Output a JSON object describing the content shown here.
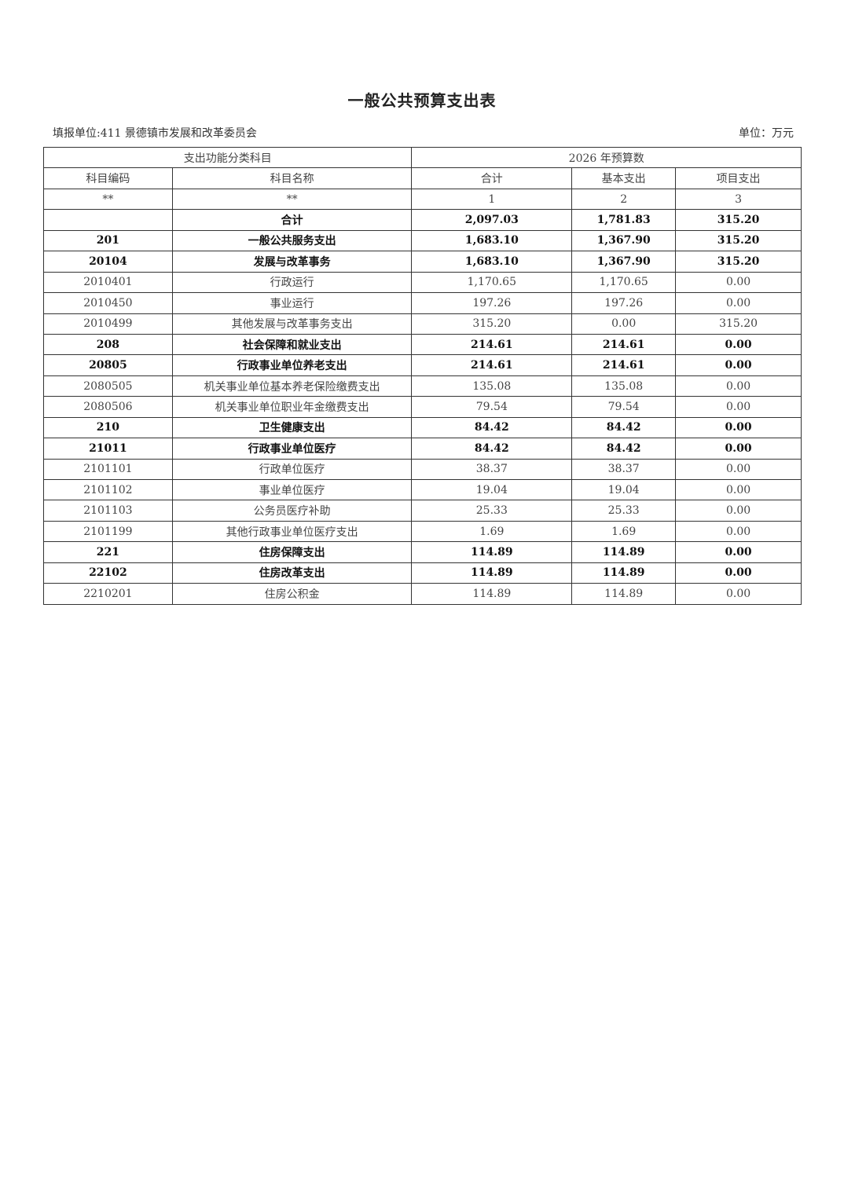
{
  "title": "一般公共预算支出表",
  "unit_left": "填报单位:411 景德镇市发展和改革委员会",
  "unit_right": "单位：万元",
  "header": {
    "group1": "支出功能分类科目",
    "group2": "2026 年预算数",
    "cols": [
      "科目编码",
      "科目名称",
      "合计",
      "基本支出",
      "项目支出"
    ],
    "index": [
      "**",
      "**",
      "1",
      "2",
      "3"
    ]
  },
  "rows": [
    {
      "code": "",
      "name": "合计",
      "total": "2,097.03",
      "basic": "1,781.83",
      "project": "315.20",
      "bold": true
    },
    {
      "code": "201",
      "name": "一般公共服务支出",
      "total": "1,683.10",
      "basic": "1,367.90",
      "project": "315.20",
      "bold": true
    },
    {
      "code": "20104",
      "name": "发展与改革事务",
      "total": "1,683.10",
      "basic": "1,367.90",
      "project": "315.20",
      "bold": true
    },
    {
      "code": "2010401",
      "name": "行政运行",
      "total": "1,170.65",
      "basic": "1,170.65",
      "project": "0.00",
      "bold": false
    },
    {
      "code": "2010450",
      "name": "事业运行",
      "total": "197.26",
      "basic": "197.26",
      "project": "0.00",
      "bold": false
    },
    {
      "code": "2010499",
      "name": "其他发展与改革事务支出",
      "total": "315.20",
      "basic": "0.00",
      "project": "315.20",
      "bold": false
    },
    {
      "code": "208",
      "name": "社会保障和就业支出",
      "total": "214.61",
      "basic": "214.61",
      "project": "0.00",
      "bold": true
    },
    {
      "code": "20805",
      "name": "行政事业单位养老支出",
      "total": "214.61",
      "basic": "214.61",
      "project": "0.00",
      "bold": true
    },
    {
      "code": "2080505",
      "name": "机关事业单位基本养老保险缴费支出",
      "total": "135.08",
      "basic": "135.08",
      "project": "0.00",
      "bold": false
    },
    {
      "code": "2080506",
      "name": "机关事业单位职业年金缴费支出",
      "total": "79.54",
      "basic": "79.54",
      "project": "0.00",
      "bold": false
    },
    {
      "code": "210",
      "name": "卫生健康支出",
      "total": "84.42",
      "basic": "84.42",
      "project": "0.00",
      "bold": true
    },
    {
      "code": "21011",
      "name": "行政事业单位医疗",
      "total": "84.42",
      "basic": "84.42",
      "project": "0.00",
      "bold": true
    },
    {
      "code": "2101101",
      "name": "行政单位医疗",
      "total": "38.37",
      "basic": "38.37",
      "project": "0.00",
      "bold": false
    },
    {
      "code": "2101102",
      "name": "事业单位医疗",
      "total": "19.04",
      "basic": "19.04",
      "project": "0.00",
      "bold": false
    },
    {
      "code": "2101103",
      "name": "公务员医疗补助",
      "total": "25.33",
      "basic": "25.33",
      "project": "0.00",
      "bold": false
    },
    {
      "code": "2101199",
      "name": "其他行政事业单位医疗支出",
      "total": "1.69",
      "basic": "1.69",
      "project": "0.00",
      "bold": false
    },
    {
      "code": "221",
      "name": "住房保障支出",
      "total": "114.89",
      "basic": "114.89",
      "project": "0.00",
      "bold": true
    },
    {
      "code": "22102",
      "name": "住房改革支出",
      "total": "114.89",
      "basic": "114.89",
      "project": "0.00",
      "bold": true
    },
    {
      "code": "2210201",
      "name": "住房公积金",
      "total": "114.89",
      "basic": "114.89",
      "project": "0.00",
      "bold": false
    }
  ]
}
